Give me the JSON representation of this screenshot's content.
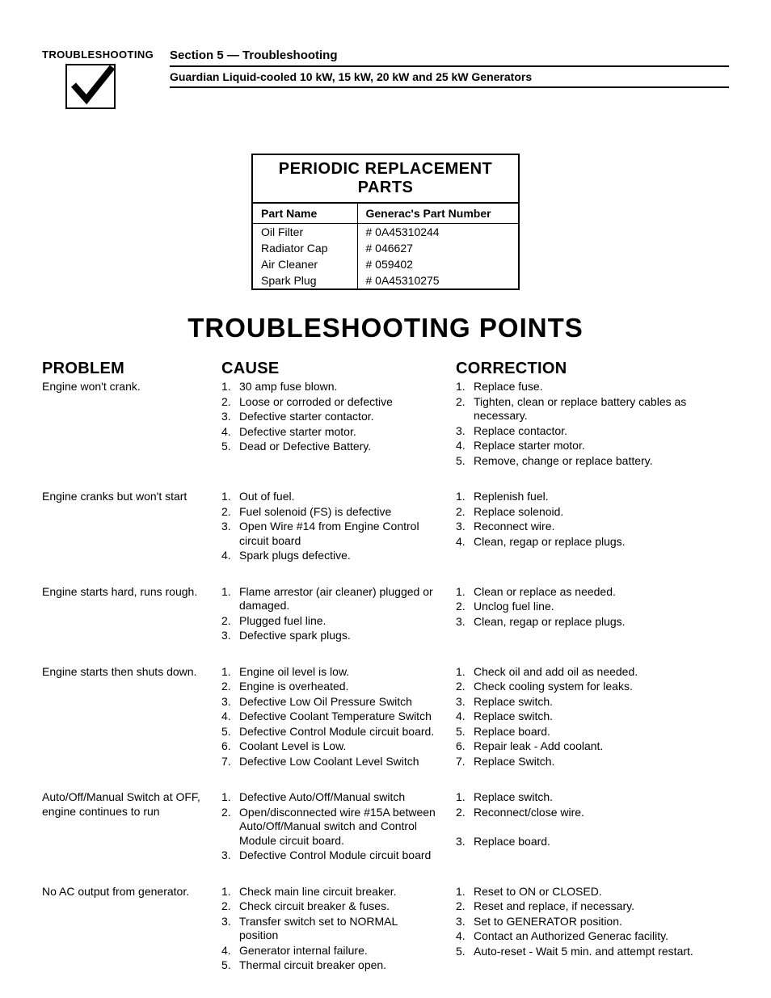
{
  "header": {
    "badge_label": "TROUBLESHOOTING",
    "section_title": "Section 5 — Troubleshooting",
    "subtitle": "Guardian Liquid-cooled 10 kW, 15 kW, 20 kW and 25 kW Generators",
    "check_stroke": "#000000",
    "check_fill": "#000000"
  },
  "parts_table": {
    "caption": "PERIODIC REPLACEMENT PARTS",
    "col1": "Part Name",
    "col2": "Generac's Part Number",
    "rows": [
      {
        "name": "Oil Filter",
        "num": "# 0A45310244"
      },
      {
        "name": "Radiator Cap",
        "num": "# 046627"
      },
      {
        "name": "Air Cleaner",
        "num": "# 059402"
      },
      {
        "name": "Spark Plug",
        "num": "# 0A45310275"
      }
    ]
  },
  "big_title": "TROUBLESHOOTING POINTS",
  "col_headers": {
    "problem": "PROBLEM",
    "cause": "CAUSE",
    "correction": "CORRECTION"
  },
  "rows": [
    {
      "problem": "Engine won't crank.",
      "causes": [
        "30 amp fuse blown.",
        "Loose or corroded or defective",
        "Defective starter contactor.",
        "Defective starter motor.",
        "Dead or Defective Battery."
      ],
      "corrections": [
        "Replace fuse.",
        "Tighten, clean or replace battery cables as necessary.",
        "Replace contactor.",
        "Replace starter motor.",
        "Remove, change or replace battery."
      ]
    },
    {
      "problem": "Engine cranks but won't start",
      "causes": [
        "Out of fuel.",
        "Fuel solenoid (FS) is defective",
        "Open Wire #14 from Engine Control circuit board",
        "Spark plugs defective."
      ],
      "corrections": [
        "Replenish fuel.",
        "Replace solenoid.",
        "Reconnect wire.\n",
        "Clean, regap or replace plugs."
      ]
    },
    {
      "problem": "Engine starts hard, runs rough.",
      "causes": [
        "Flame arrestor (air cleaner) plugged or damaged.",
        "Plugged fuel line.",
        "Defective spark plugs."
      ],
      "corrections": [
        "Clean or replace as needed.\n",
        "Unclog fuel line.",
        "Clean, regap or replace plugs."
      ]
    },
    {
      "problem": "Engine starts then shuts down.",
      "causes": [
        "Engine oil level is low.",
        "Engine is overheated.",
        "Defective Low Oil Pressure Switch",
        "Defective Coolant Temperature Switch",
        "Defective Control Module circuit board.",
        "Coolant Level is Low.",
        "Defective Low Coolant Level Switch"
      ],
      "corrections": [
        "Check oil and add oil as needed.",
        "Check cooling system for leaks.",
        "Replace switch.",
        "Replace switch.",
        "Replace board.",
        "Repair leak - Add coolant.",
        "Replace Switch."
      ]
    },
    {
      "problem": "Auto/Off/Manual Switch at OFF, engine continues to run",
      "causes": [
        "Defective Auto/Off/Manual switch",
        "Open/disconnected wire #15A between Auto/Off/Manual switch and Control Module circuit board.",
        "Defective Control Module circuit board"
      ],
      "corrections": [
        "Replace switch.",
        "Reconnect/close wire.\n\n",
        "Replace board."
      ]
    },
    {
      "problem": "No AC output from generator.",
      "causes": [
        "Check main line circuit breaker.",
        "Check circuit breaker & fuses.",
        "Transfer switch set to NORMAL position",
        "Generator internal failure.",
        "Thermal circuit breaker open."
      ],
      "corrections": [
        "Reset to ON or CLOSED.",
        "Reset and replace, if necessary.",
        "Set to GENERATOR position.",
        "Contact an Authorized Generac facility.",
        "Auto-reset - Wait 5 min. and attempt restart."
      ]
    }
  ]
}
